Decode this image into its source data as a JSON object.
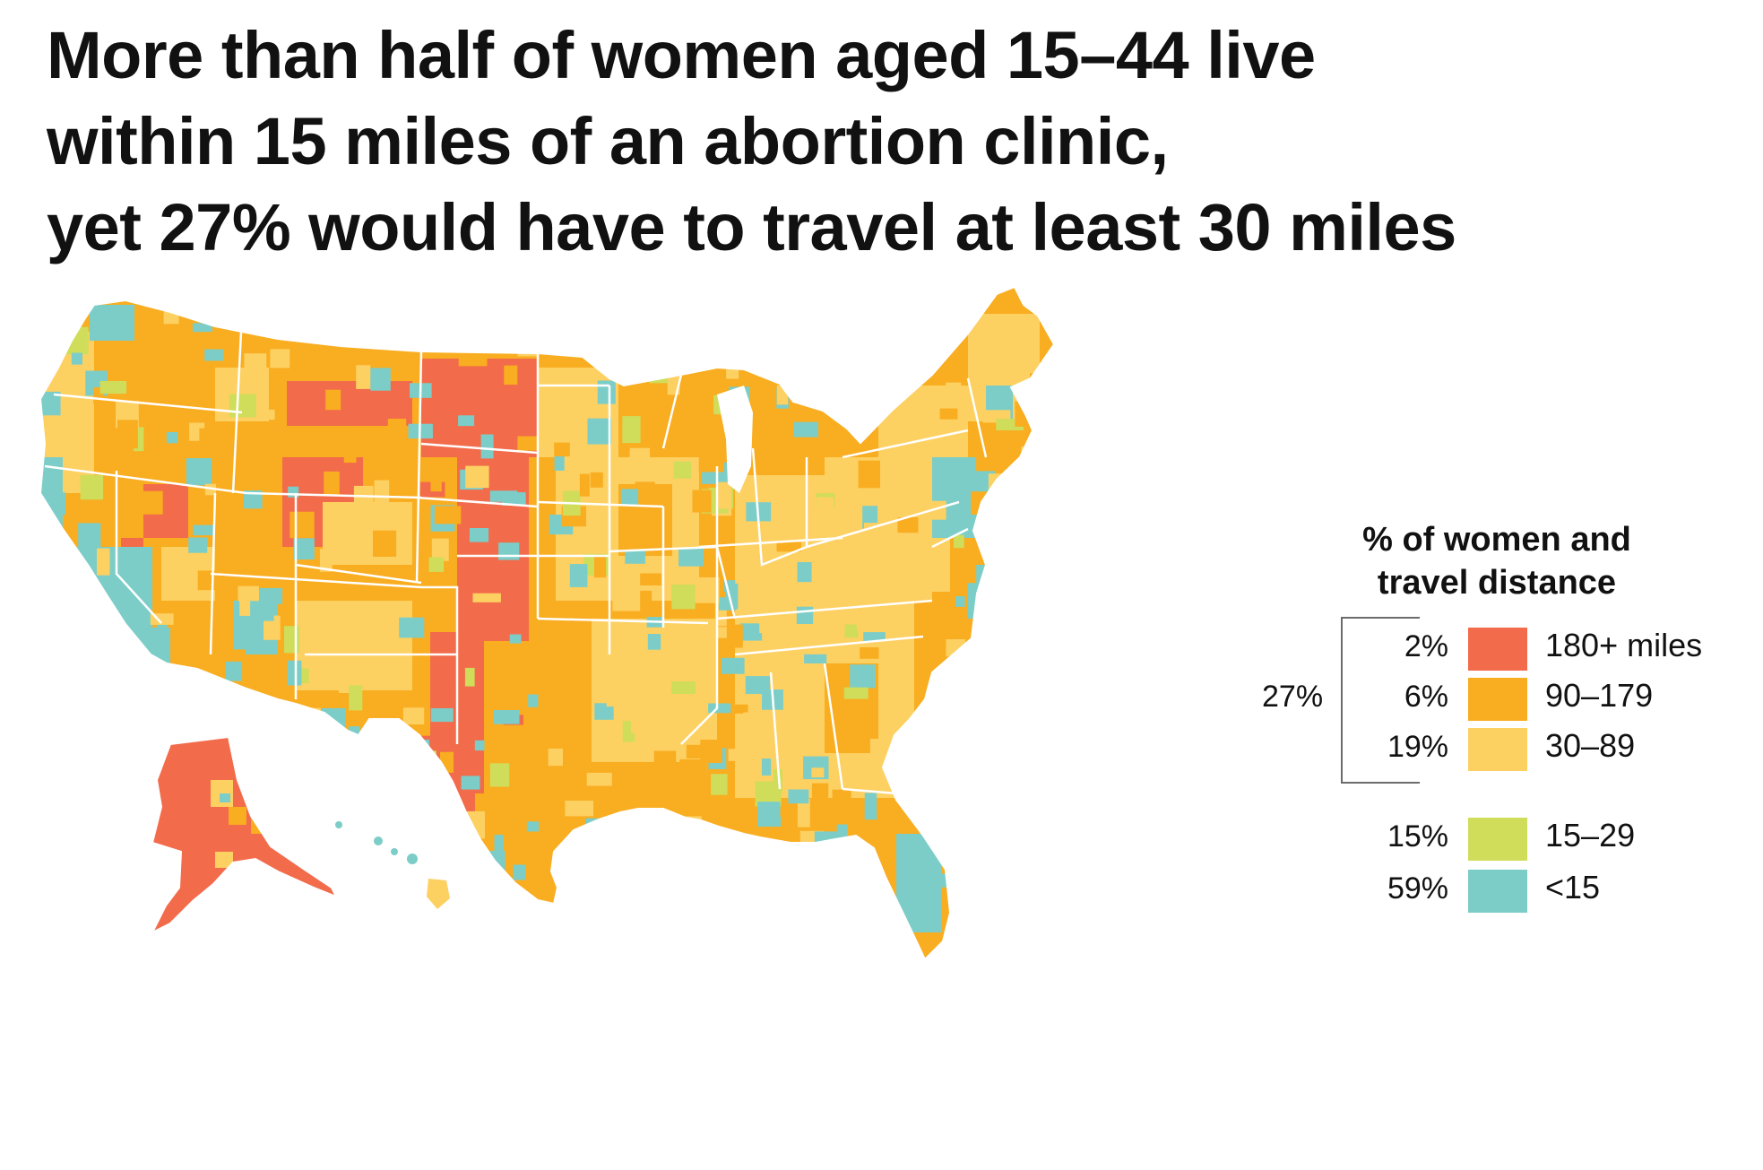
{
  "title": {
    "line1": "More than half of women aged 15–44 live",
    "line2": "within 15 miles of an abortion clinic,",
    "line3": "yet 27% would have to travel at least 30 miles"
  },
  "legend": {
    "title_line1": "% of women and",
    "title_line2": "travel distance",
    "bracket_total": "27%",
    "categories": [
      {
        "pct": "2%",
        "label": "180+ miles",
        "color": "#f26b4b"
      },
      {
        "pct": "6%",
        "label": "90–179",
        "color": "#f9ad20"
      },
      {
        "pct": "19%",
        "label": "30–89",
        "color": "#fdd062"
      },
      {
        "pct": "15%",
        "label": "15–29",
        "color": "#cfdd5b"
      },
      {
        "pct": "59%",
        "label": "<15",
        "color": "#7ccdc8"
      }
    ]
  },
  "colors": {
    "border": "#ffffff",
    "bracket": "#6b6b6b"
  }
}
